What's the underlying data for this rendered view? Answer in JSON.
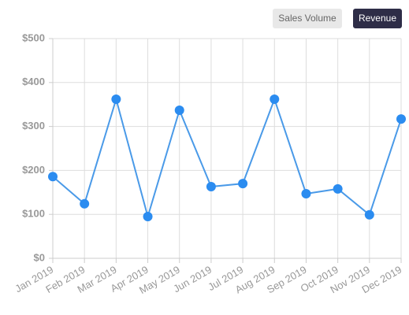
{
  "tabs": [
    "Sales Volume",
    "Revenue"
  ],
  "active_tab": 1,
  "chart_data": {
    "type": "line",
    "categories": [
      "Jan 2019",
      "Feb 2019",
      "Mar 2019",
      "Apr 2019",
      "May 2019",
      "Jun 2019",
      "Jul 2019",
      "Aug 2019",
      "Sep 2019",
      "Oct 2019",
      "Nov 2019",
      "Dec 2019"
    ],
    "values": [
      186,
      124,
      362,
      95,
      337,
      163,
      170,
      362,
      147,
      158,
      99,
      317
    ],
    "color": "#4a9ae8",
    "marker_color": "#2b8cf0",
    "ylim": [
      0,
      500
    ],
    "yticks": [
      {
        "value": 0,
        "label": "$0"
      },
      {
        "value": 100,
        "label": "$100"
      },
      {
        "value": 200,
        "label": "$200"
      },
      {
        "value": 300,
        "label": "$300"
      },
      {
        "value": 400,
        "label": "$400"
      },
      {
        "value": 500,
        "label": "$500"
      }
    ],
    "grid": true
  }
}
